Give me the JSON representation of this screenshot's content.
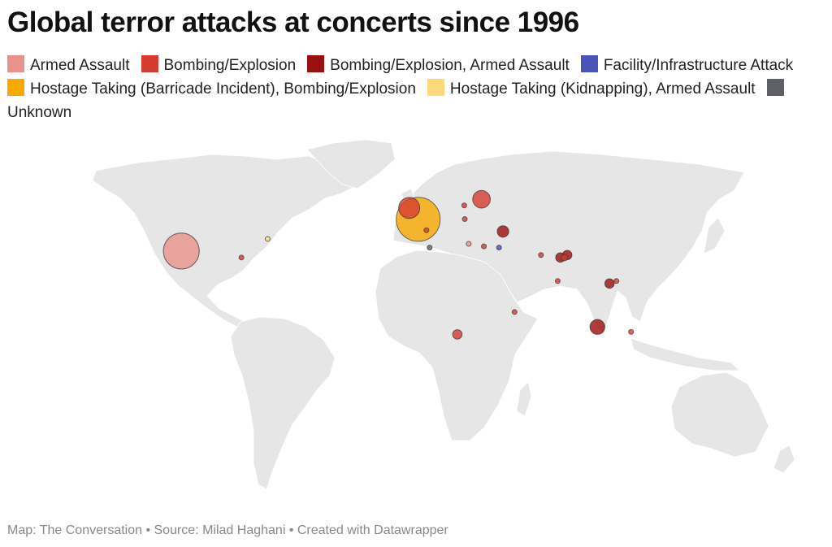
{
  "chart_data": {
    "type": "bubble-map",
    "title": "Global terror attacks at concerts since 1996",
    "footer": "Map: The Conversation • Source: Milad Haghani • Created with Datawrapper",
    "series": [
      {
        "name": "Armed Assault",
        "color": "#e8928a"
      },
      {
        "name": "Bombing/Explosion",
        "color": "#d63b2f"
      },
      {
        "name": "Bombing/Explosion, Armed Assault",
        "color": "#9b0f0f"
      },
      {
        "name": "Facility/Infrastructure Attack",
        "color": "#4b53b8"
      },
      {
        "name": "Hostage Taking (Barricade Incident), Bombing/Explosion",
        "color": "#f9a800"
      },
      {
        "name": "Hostage Taking (Kidnapping), Armed Assault",
        "color": "#fcd97a"
      },
      {
        "name": "Unknown",
        "color": "#5f5f67"
      }
    ],
    "markers": [
      {
        "lon": -115.2,
        "lat": 36.1,
        "series": 0,
        "value": 58
      },
      {
        "lon": 2.35,
        "lat": 48.9,
        "series": 4,
        "value": 87
      },
      {
        "lon": -2.2,
        "lat": 53.5,
        "series": 1,
        "value": 20
      },
      {
        "lon": 6.5,
        "lat": 44.5,
        "series": 1,
        "value": 1
      },
      {
        "lon": -73,
        "lat": 41,
        "series": 5,
        "value": 1
      },
      {
        "lon": -85,
        "lat": 33.5,
        "series": 1,
        "value": 1
      },
      {
        "lon": 35,
        "lat": 57,
        "series": 1,
        "value": 14
      },
      {
        "lon": 26,
        "lat": 54.5,
        "series": 1,
        "value": 1
      },
      {
        "lon": 26,
        "lat": 49,
        "series": 1,
        "value": 1
      },
      {
        "lon": 45,
        "lat": 44,
        "series": 2,
        "value": 6
      },
      {
        "lon": 27.5,
        "lat": 39,
        "series": 0,
        "value": 1
      },
      {
        "lon": 35,
        "lat": 38,
        "series": 1,
        "value": 1
      },
      {
        "lon": 42.5,
        "lat": 37.5,
        "series": 3,
        "value": 1
      },
      {
        "lon": 8,
        "lat": 37.5,
        "series": 6,
        "value": 1
      },
      {
        "lon": 63,
        "lat": 34.5,
        "series": 1,
        "value": 1
      },
      {
        "lon": 72.5,
        "lat": 33.5,
        "series": 2,
        "value": 4
      },
      {
        "lon": 76,
        "lat": 34.5,
        "series": 2,
        "value": 4
      },
      {
        "lon": 74.5,
        "lat": 33.5,
        "series": 1,
        "value": 2
      },
      {
        "lon": 70,
        "lat": 24,
        "series": 1,
        "value": 1
      },
      {
        "lon": 95,
        "lat": 23,
        "series": 2,
        "value": 4
      },
      {
        "lon": 98.5,
        "lat": 24,
        "series": 1,
        "value": 1
      },
      {
        "lon": 48,
        "lat": 11.5,
        "series": 1,
        "value": 1
      },
      {
        "lon": 86.5,
        "lat": 5.5,
        "series": 2,
        "value": 10
      },
      {
        "lon": 102,
        "lat": 3.5,
        "series": 1,
        "value": 1
      },
      {
        "lon": 20.5,
        "lat": 2.5,
        "series": 1,
        "value": 4
      }
    ]
  }
}
